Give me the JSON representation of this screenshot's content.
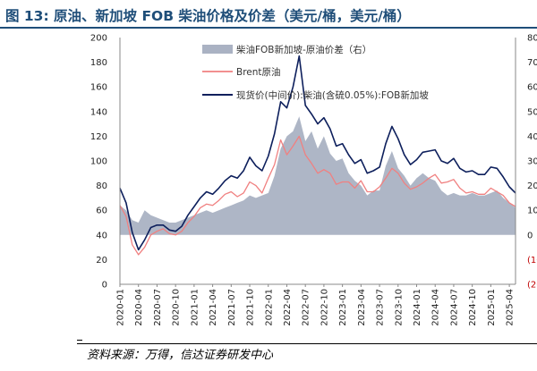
{
  "title": "图 13:  原油、新加坡 FOB 柴油价格及价差（美元/桶，美元/桶）",
  "source": "资料来源：万得，信达证券研发中心",
  "chart_data": {
    "type": "line",
    "x": [
      "2020-01",
      "2020-02",
      "2020-03",
      "2020-04",
      "2020-05",
      "2020-06",
      "2020-07",
      "2020-08",
      "2020-09",
      "2020-10",
      "2020-11",
      "2020-12",
      "2021-01",
      "2021-02",
      "2021-03",
      "2021-04",
      "2021-05",
      "2021-06",
      "2021-07",
      "2021-08",
      "2021-09",
      "2021-10",
      "2021-11",
      "2021-12",
      "2022-01",
      "2022-02",
      "2022-03",
      "2022-04",
      "2022-05",
      "2022-06",
      "2022-07",
      "2022-08",
      "2022-09",
      "2022-10",
      "2022-11",
      "2022-12",
      "2023-01",
      "2023-02",
      "2023-03",
      "2023-04",
      "2023-05",
      "2023-06",
      "2023-07",
      "2023-08",
      "2023-09",
      "2023-10",
      "2023-11",
      "2023-12",
      "2024-01",
      "2024-02",
      "2024-03",
      "2024-04",
      "2024-05",
      "2024-06",
      "2024-07",
      "2024-08",
      "2024-09",
      "2024-10",
      "2024-11",
      "2024-12",
      "2025-01",
      "2025-02",
      "2025-03",
      "2025-04",
      "2025-05"
    ],
    "x_tick_labels": [
      "2020-01",
      "2020-04",
      "2020-07",
      "2020-10",
      "2021-01",
      "2021-04",
      "2021-07",
      "2021-10",
      "2022-01",
      "2022-04",
      "2022-07",
      "2022-10",
      "2023-01",
      "2023-04",
      "2023-07",
      "2023-10",
      "2024-01",
      "2024-04",
      "2024-07",
      "2024-10",
      "2025-01",
      "2025-04"
    ],
    "y_left": {
      "min": 0,
      "max": 200,
      "ticks": [
        0,
        20,
        40,
        60,
        80,
        100,
        120,
        140,
        160,
        180,
        200
      ]
    },
    "y_right": {
      "min": -20,
      "max": 80,
      "ticks": [
        80,
        70,
        60,
        50,
        40,
        30,
        20,
        10,
        0,
        -10,
        -20
      ],
      "tick_labels": [
        "80",
        "70",
        "60",
        "50",
        "40",
        "30",
        "20",
        "10",
        "0",
        "(10",
        "(20"
      ]
    },
    "grid": false,
    "legend_position": "top-center",
    "series": [
      {
        "name": "柴油FOB新加坡-原油价差（右）",
        "kind": "area",
        "axis": "right",
        "color": "#aab2c3",
        "values": [
          12,
          10,
          6,
          5,
          10,
          8,
          7,
          6,
          5,
          5,
          6,
          7,
          8,
          9,
          10,
          9,
          10,
          11,
          12,
          13,
          14,
          16,
          15,
          16,
          17,
          24,
          35,
          40,
          42,
          48,
          38,
          42,
          35,
          40,
          33,
          30,
          31,
          25,
          22,
          20,
          16,
          18,
          18,
          28,
          34,
          27,
          24,
          20,
          23,
          25,
          23,
          22,
          18,
          16,
          17,
          16,
          16,
          17,
          16,
          16,
          17,
          18,
          15,
          13,
          11
        ]
      },
      {
        "name": "Brent原油",
        "kind": "line",
        "axis": "left",
        "color": "#f08080",
        "values": [
          64,
          55,
          32,
          24,
          30,
          40,
          43,
          45,
          41,
          40,
          43,
          50,
          55,
          62,
          65,
          64,
          68,
          73,
          75,
          71,
          74,
          83,
          80,
          74,
          86,
          97,
          117,
          105,
          112,
          120,
          105,
          98,
          90,
          93,
          90,
          81,
          83,
          83,
          78,
          84,
          75,
          75,
          79,
          86,
          94,
          90,
          82,
          77,
          79,
          82,
          86,
          89,
          82,
          83,
          85,
          78,
          74,
          75,
          73,
          73,
          78,
          75,
          72,
          66,
          63
        ]
      },
      {
        "name": "现货价(中间价):柴油(含硫0.05%):FOB新加坡",
        "kind": "line",
        "axis": "left",
        "color": "#0d1f5c",
        "values": [
          78,
          66,
          42,
          28,
          36,
          46,
          48,
          48,
          44,
          43,
          47,
          56,
          63,
          70,
          75,
          73,
          78,
          84,
          88,
          86,
          92,
          103,
          96,
          92,
          104,
          122,
          148,
          143,
          160,
          185,
          145,
          138,
          130,
          135,
          126,
          112,
          114,
          105,
          98,
          101,
          90,
          92,
          95,
          114,
          128,
          118,
          105,
          97,
          101,
          107,
          108,
          109,
          100,
          98,
          102,
          94,
          91,
          92,
          89,
          89,
          95,
          94,
          87,
          79,
          74
        ]
      }
    ]
  }
}
